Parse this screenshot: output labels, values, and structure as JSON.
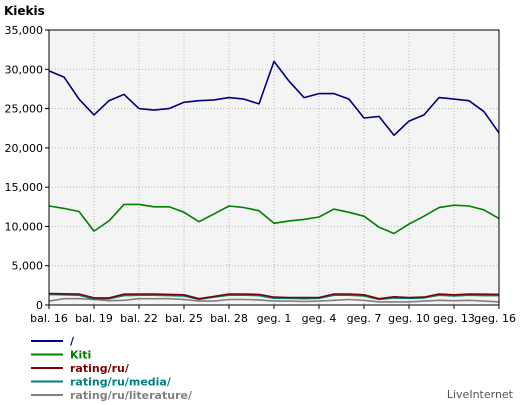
{
  "chart_data": {
    "type": "line",
    "title": "Kiekis",
    "xlabel": "",
    "ylabel": "",
    "ylim": [
      0,
      35000
    ],
    "y_ticks": [
      "0",
      "5,000",
      "10,000",
      "15,000",
      "20,000",
      "25,000",
      "30,000",
      "35,000"
    ],
    "y_tick_values": [
      0,
      5000,
      10000,
      15000,
      20000,
      25000,
      30000,
      35000
    ],
    "categories": [
      "bal. 16",
      "bal. 17",
      "bal. 18",
      "bal. 19",
      "bal. 20",
      "bal. 21",
      "bal. 22",
      "bal. 23",
      "bal. 24",
      "bal. 25",
      "bal. 26",
      "bal. 27",
      "bal. 28",
      "bal. 29",
      "bal. 30",
      "geg. 1",
      "geg. 2",
      "geg. 3",
      "geg. 4",
      "geg. 5",
      "geg. 6",
      "geg. 7",
      "geg. 8",
      "geg. 9",
      "geg. 10",
      "geg. 11",
      "geg. 12",
      "geg. 13",
      "geg. 14",
      "geg. 15",
      "geg. 16"
    ],
    "x_tick_labels": [
      "bal. 16",
      "bal. 19",
      "bal. 22",
      "bal. 25",
      "bal. 28",
      "geg. 1",
      "geg. 4",
      "geg. 7",
      "geg. 10",
      "geg. 13",
      "geg. 16"
    ],
    "x_tick_indices": [
      0,
      3,
      6,
      9,
      12,
      15,
      18,
      21,
      24,
      27,
      30
    ],
    "grid": true,
    "legend_position": "bottom-left",
    "series": [
      {
        "name": "/",
        "color": "#000080",
        "values": [
          29800,
          29000,
          26200,
          24200,
          26000,
          26800,
          25000,
          24800,
          25000,
          25800,
          26000,
          26100,
          26400,
          26200,
          25600,
          31000,
          28500,
          26400,
          26900,
          26900,
          26200,
          23800,
          24000,
          21600,
          23400,
          24200,
          26400,
          26200,
          26000,
          24600,
          21900
        ]
      },
      {
        "name": "Kiti",
        "color": "#008000",
        "values": [
          12600,
          12300,
          11900,
          9400,
          10700,
          12800,
          12800,
          12500,
          12500,
          11800,
          10600,
          11600,
          12600,
          12400,
          12000,
          10400,
          10700,
          10900,
          11200,
          12200,
          11800,
          11300,
          9900,
          9100,
          10300,
          11300,
          12400,
          12700,
          12600,
          12100,
          11000
        ]
      },
      {
        "name": "rating/ru/",
        "color": "#800000",
        "values": [
          1450,
          1420,
          1400,
          900,
          900,
          1380,
          1400,
          1400,
          1350,
          1300,
          800,
          1100,
          1400,
          1400,
          1350,
          1000,
          950,
          950,
          950,
          1400,
          1400,
          1300,
          800,
          1050,
          950,
          1000,
          1400,
          1300,
          1400,
          1380,
          1350
        ]
      },
      {
        "name": "rating/ru/media/",
        "color": "#008080",
        "values": [
          1350,
          1300,
          1250,
          750,
          800,
          1200,
          1250,
          1250,
          1200,
          1150,
          700,
          1000,
          1250,
          1250,
          1200,
          850,
          850,
          800,
          850,
          1250,
          1250,
          1150,
          700,
          900,
          850,
          900,
          1250,
          1150,
          1250,
          1200,
          1200
        ]
      },
      {
        "name": "rating/ru/literature/",
        "color": "#808080",
        "values": [
          500,
          800,
          800,
          700,
          550,
          600,
          800,
          800,
          800,
          700,
          500,
          500,
          700,
          700,
          650,
          500,
          500,
          450,
          500,
          600,
          700,
          600,
          400,
          400,
          400,
          500,
          600,
          550,
          600,
          500,
          400
        ]
      }
    ]
  },
  "brand": "LiveInternet"
}
